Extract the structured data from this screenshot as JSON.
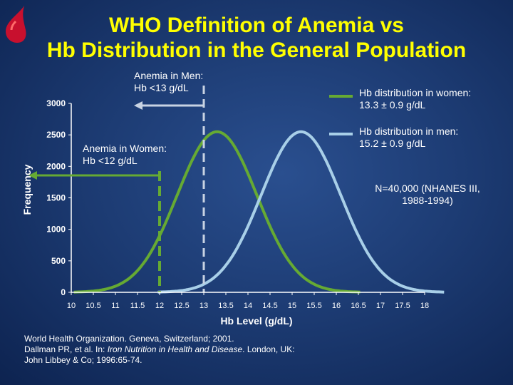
{
  "slide": {
    "title_line1": "WHO Definition of Anemia vs",
    "title_line2": "Hb Distribution in the General Population",
    "logo_icon": "blood-drop-icon"
  },
  "annotations": {
    "men_threshold_line1": "Anemia in Men:",
    "men_threshold_line2": "Hb <13 g/dL",
    "women_threshold_line1": "Anemia in Women:",
    "women_threshold_line2": "Hb <12 g/dL",
    "women_dist_line1": "Hb distribution in women:",
    "women_dist_line2": "13.3 ± 0.9 g/dL",
    "men_dist_line1": "Hb distribution in men:",
    "men_dist_line2": "15.2 ± 0.9 g/dL",
    "sample_line1": "N=40,000 (NHANES III,",
    "sample_line2": "1988-1994)"
  },
  "citation": {
    "line1": "World Health Organization. Geneva, Switzerland; 2001.",
    "line2_prefix": "Dallman PR, et al. In: ",
    "line2_italic": "Iron Nutrition in Health and Disease",
    "line2_suffix": ". London, UK:",
    "line3": "John Libbey & Co; 1996:65-74."
  },
  "colors": {
    "title": "#ffff00",
    "women_curve": "#66aa33",
    "men_curve": "#a8cfe8",
    "threshold_men": "#c8d3e3",
    "threshold_women": "#66aa33",
    "axis": "#ffffff"
  },
  "chart_data": {
    "type": "line",
    "xlabel": "Hb Level (g/dL)",
    "ylabel": "Frequency",
    "xlim": [
      10,
      18
    ],
    "ylim": [
      0,
      3000
    ],
    "x_ticks": [
      "10",
      "10.5",
      "11",
      "11.5",
      "12",
      "12.5",
      "13",
      "13.5",
      "14",
      "14.5",
      "15",
      "15.5",
      "16",
      "16.5",
      "17",
      "17.5",
      "18"
    ],
    "y_ticks": [
      "0",
      "500",
      "1000",
      "1500",
      "2000",
      "2500",
      "3000"
    ],
    "series": [
      {
        "name": "Hb distribution in women",
        "mean": 13.3,
        "sd": 0.9,
        "peak": 2550,
        "color": "#66aa33",
        "x": [
          10,
          10.5,
          11,
          11.5,
          12,
          12.5,
          13,
          13.3,
          13.5,
          14,
          14.5,
          15,
          15.5,
          16,
          16.5
        ],
        "y": [
          30,
          20,
          180,
          670,
          1500,
          2300,
          2480,
          2550,
          2520,
          2250,
          1790,
          1020,
          430,
          190,
          30
        ]
      },
      {
        "name": "Hb distribution in men",
        "mean": 15.2,
        "sd": 0.9,
        "peak": 2550,
        "color": "#a8cfe8",
        "x": [
          12,
          12.5,
          13,
          13.5,
          14,
          14.5,
          15,
          15.2,
          15.5,
          16,
          16.5,
          17,
          17.5,
          18
        ],
        "y": [
          20,
          150,
          480,
          1160,
          1900,
          2330,
          2520,
          2550,
          2520,
          2100,
          1470,
          680,
          220,
          30
        ]
      }
    ],
    "thresholds": [
      {
        "label": "Anemia in Men: Hb <13 g/dL",
        "x": 13,
        "color": "#c8d3e3"
      },
      {
        "label": "Anemia in Women: Hb <12 g/dL",
        "x": 12,
        "color": "#66aa33"
      }
    ]
  }
}
